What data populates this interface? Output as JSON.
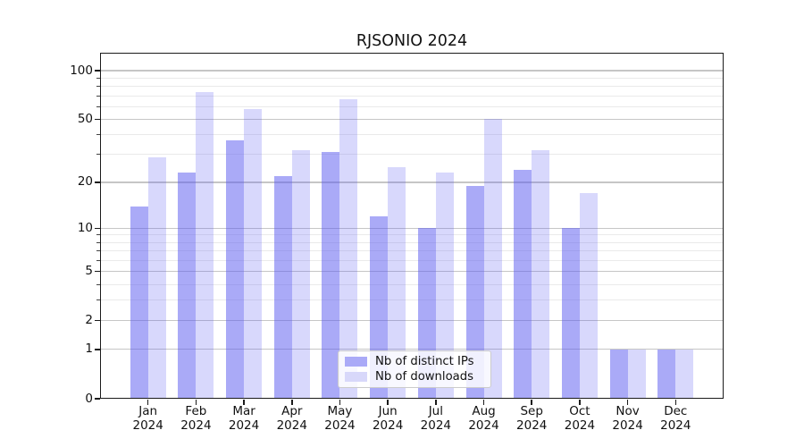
{
  "chart_data": {
    "type": "bar",
    "title": "RJSONIO 2024",
    "months": [
      "Jan",
      "Feb",
      "Mar",
      "Apr",
      "May",
      "Jun",
      "Jul",
      "Aug",
      "Sep",
      "Oct",
      "Nov",
      "Dec"
    ],
    "year": "2024",
    "categories": [
      "Jan 2024",
      "Feb 2024",
      "Mar 2024",
      "Apr 2024",
      "May 2024",
      "Jun 2024",
      "Jul 2024",
      "Aug 2024",
      "Sep 2024",
      "Oct 2024",
      "Nov 2024",
      "Dec 2024"
    ],
    "series": [
      {
        "name": "Nb of distinct IPs",
        "color": "rgba(85,85,240,0.5)",
        "color_over_white": "#aaaaf7",
        "values": [
          14,
          23,
          37,
          22,
          31,
          12,
          10,
          19,
          24,
          10,
          1,
          1
        ]
      },
      {
        "name": "Nb of downloads",
        "color": "rgba(85,85,240,0.23)",
        "color_over_white": "#d8d8fa",
        "values": [
          29,
          74,
          58,
          32,
          67,
          25,
          23,
          50,
          32,
          17,
          1,
          1
        ]
      }
    ],
    "y_axis": {
      "scale": "log1p",
      "min": 0,
      "max": 129,
      "major_ticks": [
        0,
        1,
        2,
        5,
        10,
        20,
        50,
        100
      ],
      "major_tick_labels": [
        "0",
        "1",
        "2",
        "5",
        "10",
        "20",
        "50",
        "100"
      ],
      "minor_gridlines": [
        3,
        4,
        6,
        7,
        8,
        9,
        30,
        40,
        60,
        70,
        80,
        90
      ]
    },
    "grid": true,
    "legend": {
      "position": "bottom-center"
    },
    "colors": {
      "major_grid": "#c6c6c6",
      "minor_grid": "#eaeaea",
      "spine": "#1b1b1b",
      "text": "#111111",
      "background": "#ffffff"
    }
  }
}
